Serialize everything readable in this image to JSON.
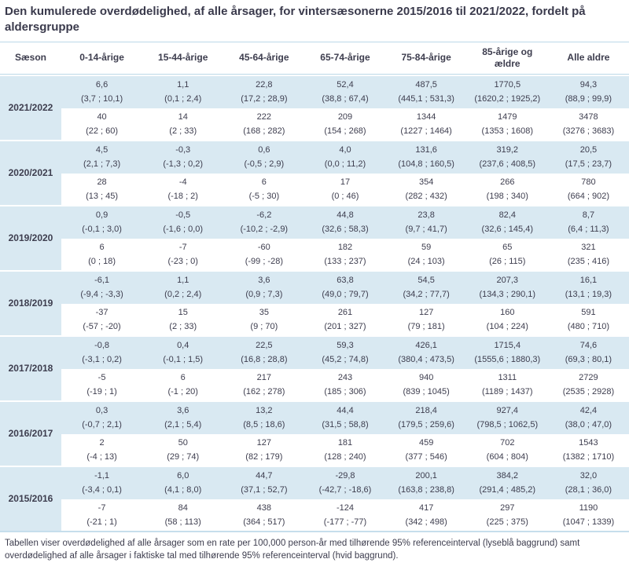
{
  "title": "Den kumulerede overdødelighed, af alle årsager, for vintersæsonerne 2015/2016 til 2021/2022, fordelt på aldersgruppe",
  "footnote": "Tabellen viser overdødelighed af alle årsager som en rate per 100,000 person-år med tilhørende 95% referenceinterval (lyseblå baggrund) samt overdødelighed af alle årsager i faktiske tal med tilhørende 95% referenceinterval (hvid baggrund).",
  "colors": {
    "row_highlight": "#d9e9f2",
    "text": "#3d3d4e",
    "rule": "#bcd9e8"
  },
  "chart_data": {
    "type": "table",
    "columns": [
      "Sæson",
      "0-14-årige",
      "15-44-årige",
      "45-64-årige",
      "65-74-årige",
      "75-84-årige",
      "85-årige og ældre",
      "Alle aldre"
    ],
    "seasons": [
      {
        "label": "2021/2022",
        "rate": [
          "6,6",
          "1,1",
          "22,8",
          "52,4",
          "487,5",
          "1770,5",
          "94,3"
        ],
        "rate_ci": [
          "(3,7 ; 10,1)",
          "(0,1 ; 2,4)",
          "(17,2 ; 28,9)",
          "(38,8 ; 67,4)",
          "(445,1 ; 531,3)",
          "(1620,2 ; 1925,2)",
          "(88,9 ; 99,9)"
        ],
        "count": [
          "40",
          "14",
          "222",
          "209",
          "1344",
          "1479",
          "3478"
        ],
        "count_ci": [
          "(22 ; 60)",
          "(2 ; 33)",
          "(168 ; 282)",
          "(154 ; 268)",
          "(1227 ; 1464)",
          "(1353 ; 1608)",
          "(3276 ; 3683)"
        ]
      },
      {
        "label": "2020/2021",
        "rate": [
          "4,5",
          "-0,3",
          "0,6",
          "4,0",
          "131,6",
          "319,2",
          "20,5"
        ],
        "rate_ci": [
          "(2,1 ; 7,3)",
          "(-1,3 ; 0,2)",
          "(-0,5 ; 2,9)",
          "(0,0 ; 11,2)",
          "(104,8 ; 160,5)",
          "(237,6 ; 408,5)",
          "(17,5 ; 23,7)"
        ],
        "count": [
          "28",
          "-4",
          "6",
          "17",
          "354",
          "266",
          "780"
        ],
        "count_ci": [
          "(13 ; 45)",
          "(-18 ; 2)",
          "(-5 ; 30)",
          "(0 ; 46)",
          "(282 ; 432)",
          "(198 ; 340)",
          "(664 ; 902)"
        ]
      },
      {
        "label": "2019/2020",
        "rate": [
          "0,9",
          "-0,5",
          "-6,2",
          "44,8",
          "23,8",
          "82,4",
          "8,7"
        ],
        "rate_ci": [
          "(-0,1 ; 3,0)",
          "(-1,6 ; 0,0)",
          "(-10,2 ; -2,9)",
          "(32,6 ; 58,3)",
          "(9,7 ; 41,7)",
          "(32,6 ; 145,4)",
          "(6,4 ; 11,3)"
        ],
        "count": [
          "6",
          "-7",
          "-60",
          "182",
          "59",
          "65",
          "321"
        ],
        "count_ci": [
          "(0 ; 18)",
          "(-23 ; 0)",
          "(-99 ; -28)",
          "(133 ; 237)",
          "(24 ; 103)",
          "(26 ; 115)",
          "(235 ; 416)"
        ]
      },
      {
        "label": "2018/2019",
        "rate": [
          "-6,1",
          "1,1",
          "3,6",
          "63,8",
          "54,5",
          "207,3",
          "16,1"
        ],
        "rate_ci": [
          "(-9,4 ; -3,3)",
          "(0,2 ; 2,4)",
          "(0,9 ; 7,3)",
          "(49,0 ; 79,7)",
          "(34,2 ; 77,7)",
          "(134,3 ; 290,1)",
          "(13,1 ; 19,3)"
        ],
        "count": [
          "-37",
          "15",
          "35",
          "261",
          "127",
          "160",
          "591"
        ],
        "count_ci": [
          "(-57 ; -20)",
          "(2 ; 33)",
          "(9 ; 70)",
          "(201 ; 327)",
          "(79 ; 181)",
          "(104 ; 224)",
          "(480 ; 710)"
        ]
      },
      {
        "label": "2017/2018",
        "rate": [
          "-0,8",
          "0,4",
          "22,5",
          "59,3",
          "426,1",
          "1715,4",
          "74,6"
        ],
        "rate_ci": [
          "(-3,1 ; 0,2)",
          "(-0,1 ; 1,5)",
          "(16,8 ; 28,8)",
          "(45,2 ; 74,8)",
          "(380,4 ; 473,5)",
          "(1555,6 ; 1880,3)",
          "(69,3 ; 80,1)"
        ],
        "count": [
          "-5",
          "6",
          "217",
          "243",
          "940",
          "1311",
          "2729"
        ],
        "count_ci": [
          "(-19 ; 1)",
          "(-1 ; 20)",
          "(162 ; 278)",
          "(185 ; 306)",
          "(839 ; 1045)",
          "(1189 ; 1437)",
          "(2535 ; 2928)"
        ]
      },
      {
        "label": "2016/2017",
        "rate": [
          "0,3",
          "3,6",
          "13,2",
          "44,4",
          "218,4",
          "927,4",
          "42,4"
        ],
        "rate_ci": [
          "(-0,7 ; 2,1)",
          "(2,1 ; 5,4)",
          "(8,5 ; 18,6)",
          "(31,5 ; 58,8)",
          "(179,5 ; 259,6)",
          "(798,5 ; 1062,5)",
          "(38,0 ; 47,0)"
        ],
        "count": [
          "2",
          "50",
          "127",
          "181",
          "459",
          "702",
          "1543"
        ],
        "count_ci": [
          "(-4 ; 13)",
          "(29 ; 74)",
          "(82 ; 179)",
          "(128 ; 240)",
          "(377 ; 546)",
          "(604 ; 804)",
          "(1382 ; 1710)"
        ]
      },
      {
        "label": "2015/2016",
        "rate": [
          "-1,1",
          "6,0",
          "44,7",
          "-29,8",
          "200,1",
          "384,2",
          "32,0"
        ],
        "rate_ci": [
          "(-3,4 ; 0,1)",
          "(4,1 ; 8,0)",
          "(37,1 ; 52,7)",
          "(-42,7 ; -18,6)",
          "(163,8 ; 238,8)",
          "(291,4 ; 485,2)",
          "(28,1 ; 36,0)"
        ],
        "count": [
          "-7",
          "84",
          "438",
          "-124",
          "417",
          "297",
          "1190"
        ],
        "count_ci": [
          "(-21 ; 1)",
          "(58 ; 113)",
          "(364 ; 517)",
          "(-177 ; -77)",
          "(342 ; 498)",
          "(225 ; 375)",
          "(1047 ; 1339)"
        ]
      }
    ]
  }
}
